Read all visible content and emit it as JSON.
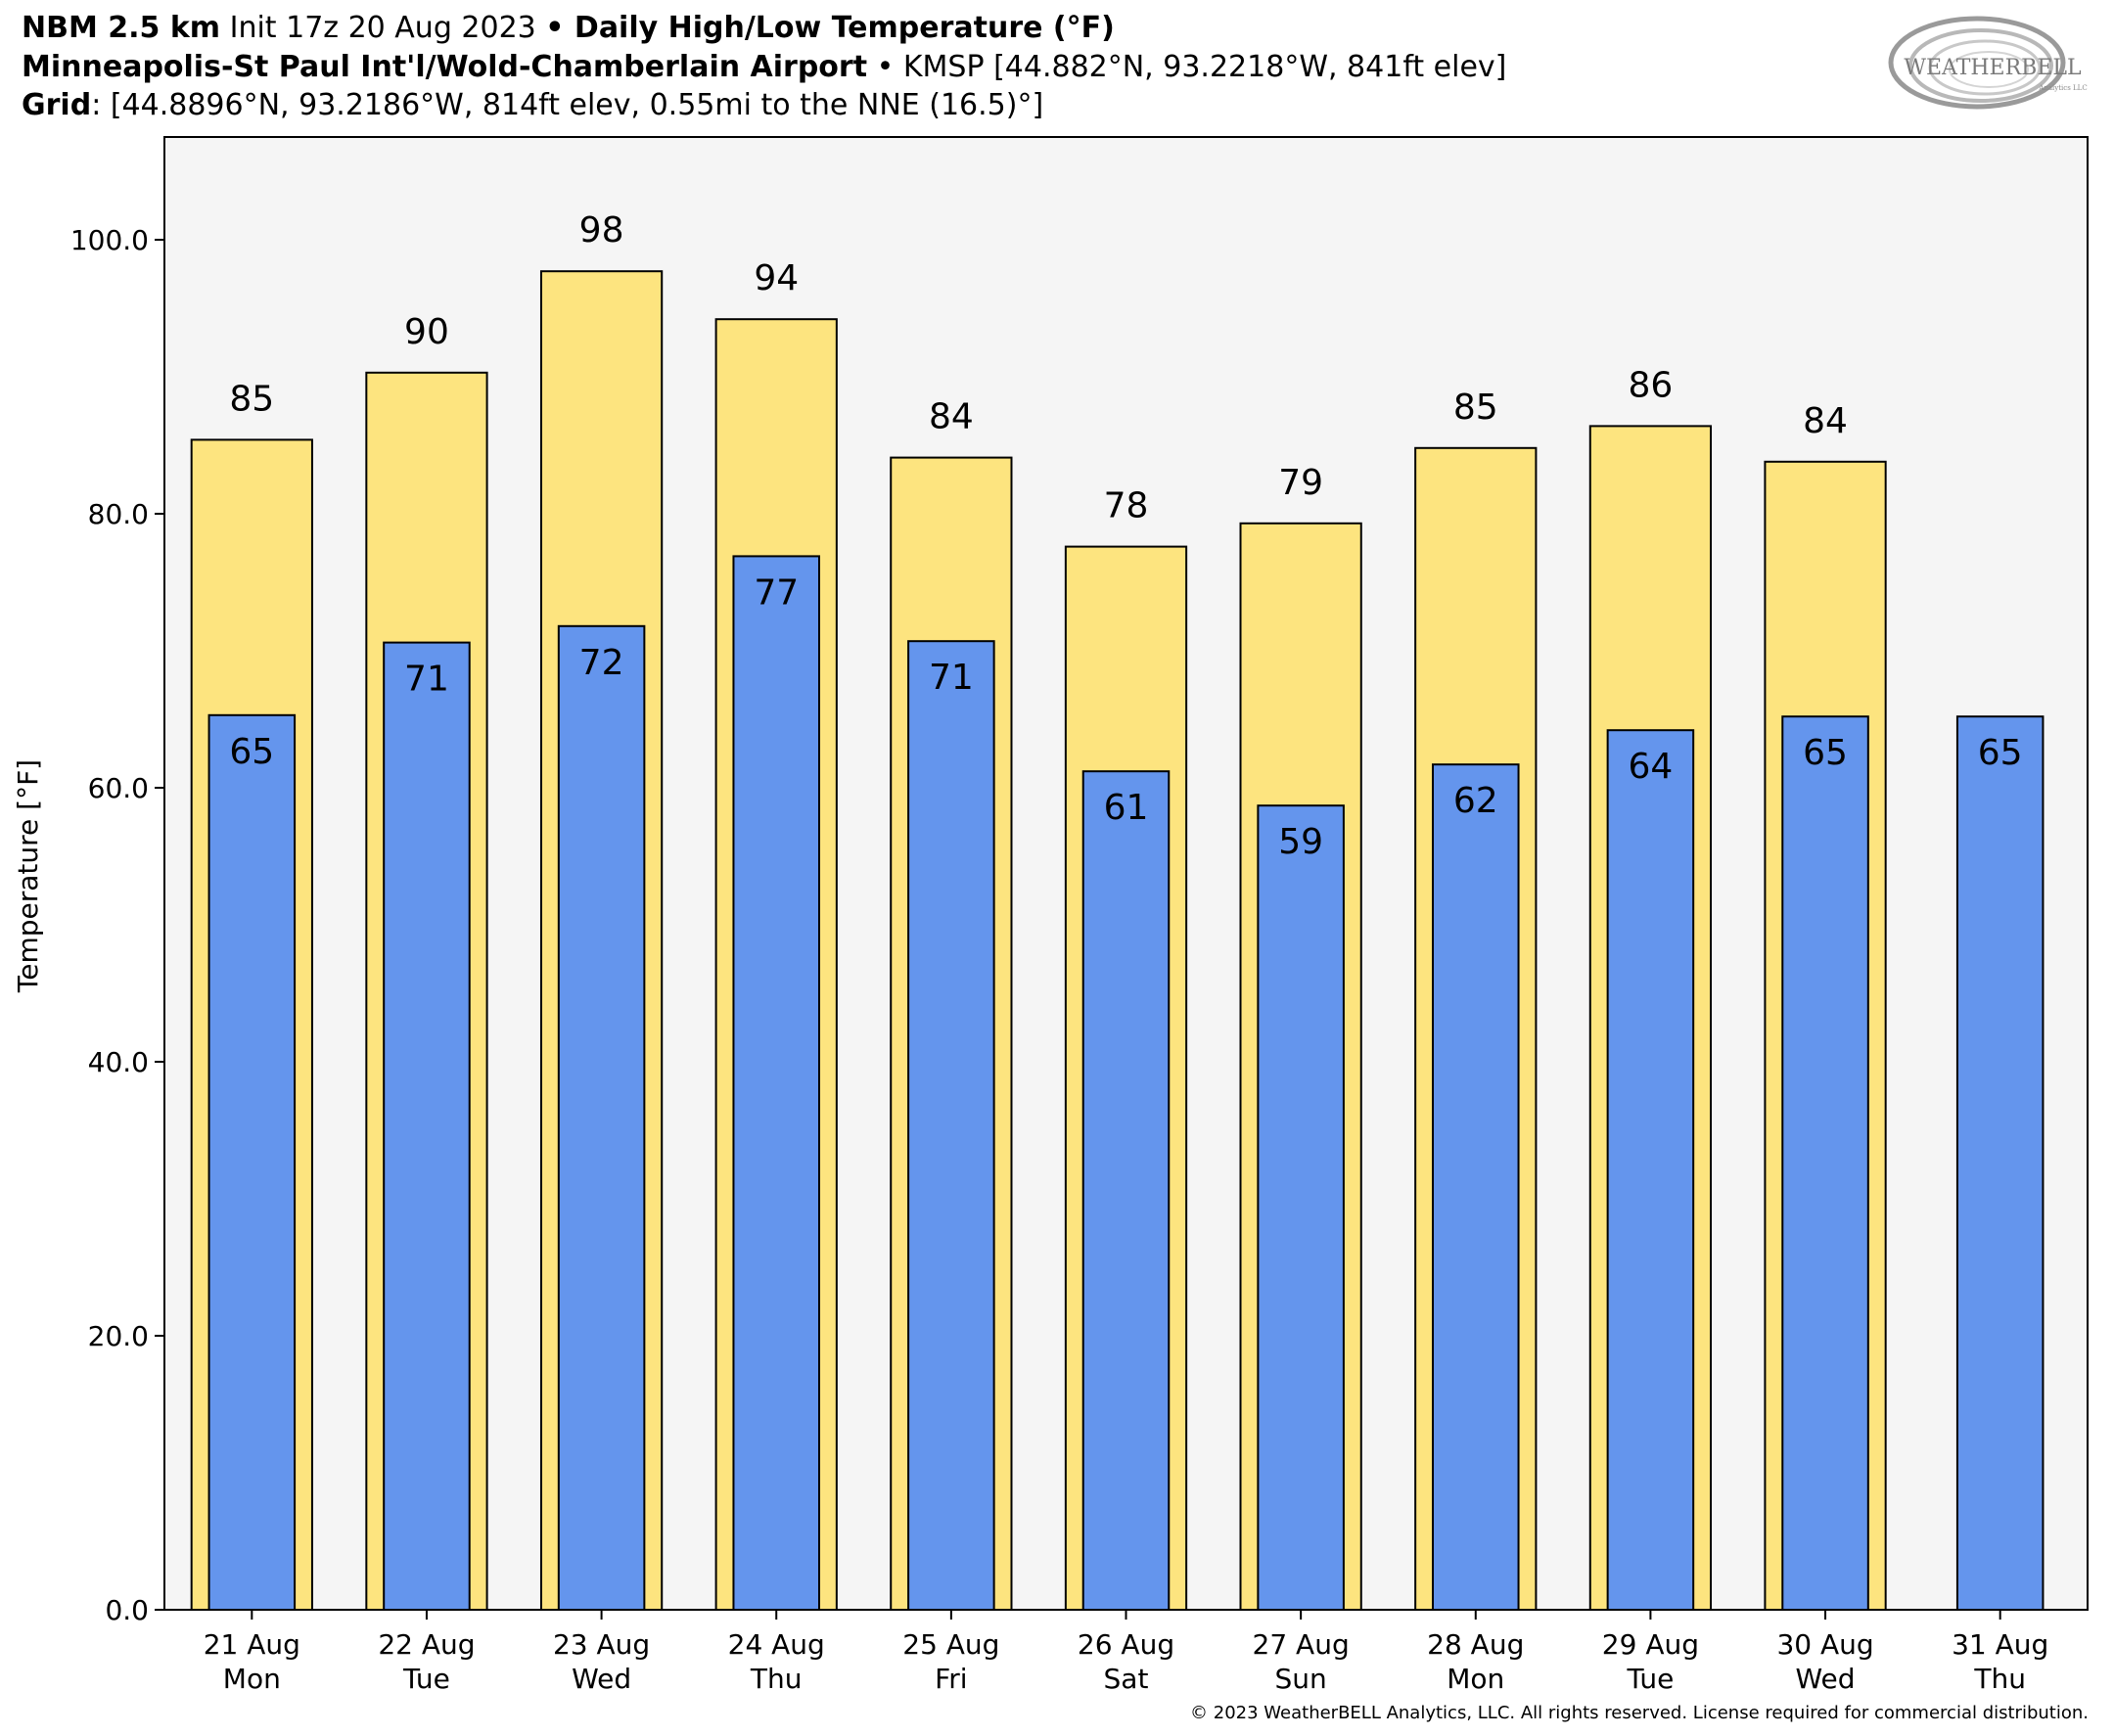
{
  "header": {
    "line1": {
      "model": "NBM 2.5 km",
      "init": " Init 17z 20 Aug 2023 ",
      "sep": "•",
      "product": " Daily High/Low Temperature (°F)"
    },
    "line2": {
      "station_name": "Minneapolis-St Paul Int'l/Wold-Chamberlain Airport",
      "sep": " • ",
      "station_info": "KMSP [44.882°N, 93.2218°W, 841ft elev]"
    },
    "line3": {
      "grid_label": "Grid",
      "grid_info": ": [44.8896°N, 93.2186°W, 814ft elev, 0.55mi to the NNE (16.5)°]"
    }
  },
  "logo": {
    "text_main": "WEATHERBELL",
    "text_sub": "Analytics LLC"
  },
  "footer": "© 2023 WeatherBELL Analytics, LLC. All rights reserved. License required for commercial distribution.",
  "colors": {
    "high_fill": "#fde47f",
    "low_fill": "#6495ed",
    "plot_bg": "#f5f5f5",
    "edge": "#000000"
  },
  "chart_data": {
    "type": "bar",
    "title": "Daily High/Low Temperature (°F)",
    "xlabel": "",
    "ylabel": "Temperature [°F]",
    "ylim": [
      0,
      107.5
    ],
    "yticks": [
      "0.0",
      "20.0",
      "40.0",
      "60.0",
      "80.0",
      "100.0"
    ],
    "grid": false,
    "categories": [
      {
        "date": "21 Aug",
        "day": "Mon"
      },
      {
        "date": "22 Aug",
        "day": "Tue"
      },
      {
        "date": "23 Aug",
        "day": "Wed"
      },
      {
        "date": "24 Aug",
        "day": "Thu"
      },
      {
        "date": "25 Aug",
        "day": "Fri"
      },
      {
        "date": "26 Aug",
        "day": "Sat"
      },
      {
        "date": "27 Aug",
        "day": "Sun"
      },
      {
        "date": "28 Aug",
        "day": "Mon"
      },
      {
        "date": "29 Aug",
        "day": "Tue"
      },
      {
        "date": "30 Aug",
        "day": "Wed"
      },
      {
        "date": "31 Aug",
        "day": "Thu"
      }
    ],
    "series": [
      {
        "key": "high",
        "values": [
          85.4,
          90.3,
          97.7,
          94.2,
          84.1,
          77.6,
          79.3,
          84.8,
          86.4,
          83.8,
          null
        ],
        "labels": [
          "85",
          "90",
          "98",
          "94",
          "84",
          "78",
          "79",
          "85",
          "86",
          "84",
          ""
        ]
      },
      {
        "key": "low",
        "values": [
          65.3,
          70.6,
          71.8,
          76.9,
          70.7,
          61.2,
          58.7,
          61.7,
          64.2,
          65.2,
          65.2
        ],
        "labels": [
          "65",
          "71",
          "72",
          "77",
          "71",
          "61",
          "59",
          "62",
          "64",
          "65",
          "65"
        ]
      }
    ]
  }
}
